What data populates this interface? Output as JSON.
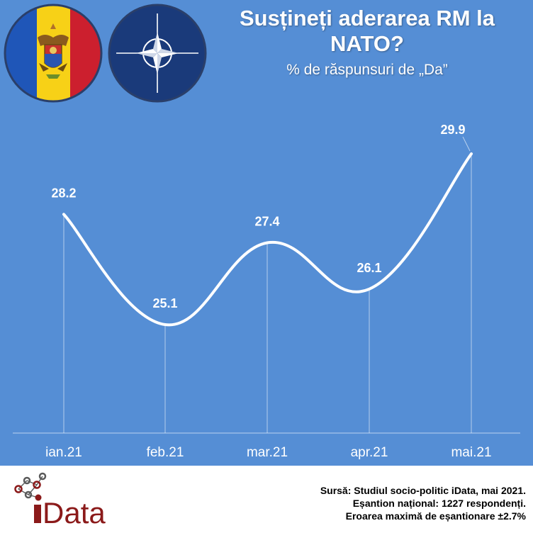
{
  "title": "Susțineți aderarea RM la NATO?",
  "subtitle": "% de răspunsuri de „Da”",
  "chart_data": {
    "type": "line",
    "categories": [
      "ian.21",
      "feb.21",
      "mar.21",
      "apr.21",
      "mai.21"
    ],
    "series": [
      {
        "values": [
          28.2,
          25.1,
          27.4,
          26.1,
          29.9
        ]
      }
    ],
    "data_labels": [
      "28.2",
      "25.1",
      "27.4",
      "26.1",
      "29.9"
    ],
    "ylim": [
      22,
      31
    ],
    "grid": false,
    "line_color": "#ffffff",
    "background": "#558ed5"
  },
  "footer": {
    "source_line_1": "Sursă: Studiul socio-politic iData, mai 2021.",
    "source_line_2": "Eșantion național: 1227 respondenți.",
    "source_line_3": "Eroarea maximă de eșantionare ±2.7%",
    "logo_text": "iData",
    "logo_color": "#8b1a1a"
  },
  "flags": {
    "left": "moldova-flag-icon",
    "right": "nato-emblem-icon"
  }
}
